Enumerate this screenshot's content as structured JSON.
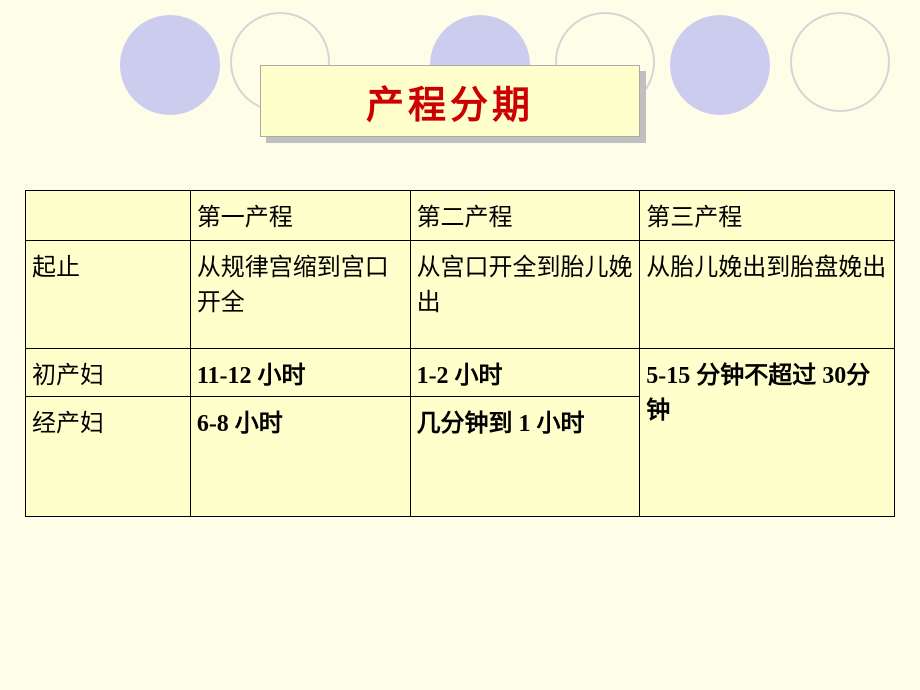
{
  "title": "产程分期",
  "circles": {
    "filled_color": "#ccccef",
    "outline_color": "#d5d5d5"
  },
  "table": {
    "header": {
      "c1": "",
      "c2": "第一产程",
      "c3": "第二产程",
      "c4": "第三产程"
    },
    "rows": [
      {
        "label": "起止",
        "c2": "从规律宫缩到宫口开全",
        "c3": "从宫口开全到胎儿娩出",
        "c4": "从胎儿娩出到胎盘娩出"
      },
      {
        "label": "初产妇",
        "c2": "11-12 小时",
        "c3": "1-2 小时",
        "c4_merged": "5-15 分钟不超过 30分钟"
      },
      {
        "label": "经产妇",
        "c2": "6-8 小时",
        "c3": "几分钟到 1 小时"
      }
    ]
  },
  "style": {
    "background_color": "#fefee8",
    "table_background": "#ffffcc",
    "title_background": "#ffffcc",
    "title_color": "#cc0000",
    "title_fontsize": 38,
    "cell_fontsize": 24,
    "border_color": "#000000"
  }
}
